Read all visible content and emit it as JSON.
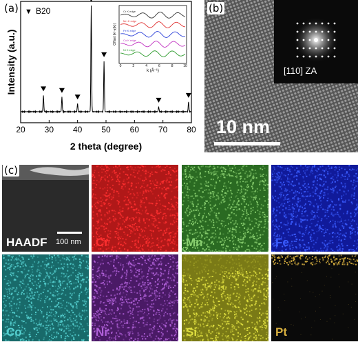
{
  "panel_a": {
    "label": "(a)",
    "legend_marker": "▼",
    "legend_text": "B20",
    "inset": {
      "ylabel": "Offset |k³·χ(k)|",
      "xlabel": "k (Å⁻¹)",
      "xticks": [
        "0",
        "2",
        "4",
        "6",
        "8",
        "10"
      ],
      "traces": [
        {
          "name": "Cr K edge",
          "color": "#333333"
        },
        {
          "name": "Mn K edge",
          "color": "#e03030"
        },
        {
          "name": "Fe K edge",
          "color": "#2a3fd8"
        },
        {
          "name": "Co K edge",
          "color": "#c030c0"
        },
        {
          "name": "Ni K edge",
          "color": "#2a9a2a"
        }
      ]
    }
  },
  "chart_data": {
    "type": "line",
    "title": "",
    "xlabel": "2 theta (degree)",
    "ylabel": "Intensity (a.u.)",
    "xlim": [
      20,
      80
    ],
    "xticks": [
      20,
      30,
      40,
      50,
      60,
      70,
      80
    ],
    "series": [
      {
        "name": "B20",
        "peaks": [
          {
            "x": 28.0,
            "y": 0.1
          },
          {
            "x": 34.5,
            "y": 0.09
          },
          {
            "x": 40.0,
            "y": 0.05
          },
          {
            "x": 44.8,
            "y": 0.65
          },
          {
            "x": 49.3,
            "y": 0.31
          },
          {
            "x": 68.5,
            "y": 0.03
          },
          {
            "x": 79.0,
            "y": 0.06
          }
        ]
      }
    ],
    "grid": false
  },
  "panel_b": {
    "label": "(b)",
    "scale_bar": "10 nm",
    "inset_label": "[110] ZA"
  },
  "panel_c": {
    "label": "(c)",
    "scale_bar": "100 nm",
    "maps": [
      {
        "id": "haadf",
        "label": "HAADF",
        "color": "#ffffff",
        "base": "#2a2a2a"
      },
      {
        "id": "cr",
        "label": "Cr",
        "color": "#ff3030",
        "base": "#b01818"
      },
      {
        "id": "mn",
        "label": "Mn",
        "color": "#8ad070",
        "base": "#2a6a22"
      },
      {
        "id": "fe",
        "label": "Fe",
        "color": "#3a5cff",
        "base": "#101a9a"
      },
      {
        "id": "co",
        "label": "Co",
        "color": "#55d0d0",
        "base": "#186a6a"
      },
      {
        "id": "ni",
        "label": "Ni",
        "color": "#b060d8",
        "base": "#4a1a66"
      },
      {
        "id": "si",
        "label": "Si",
        "color": "#e0e040",
        "base": "#7a7a16"
      },
      {
        "id": "pt",
        "label": "Pt",
        "color": "#d8b040",
        "base": "#0a0a0a"
      }
    ]
  }
}
